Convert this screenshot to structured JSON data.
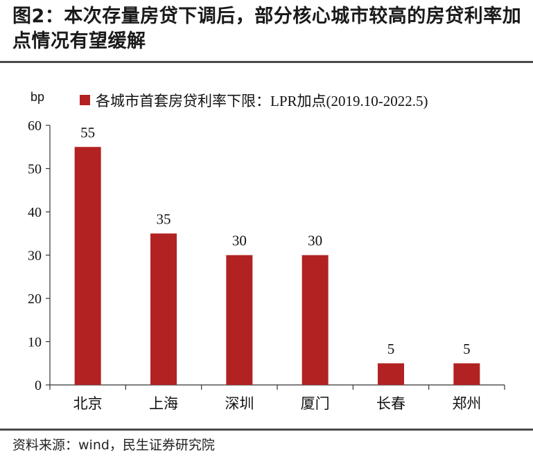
{
  "figure": {
    "title": "图2：本次存量房贷下调后，部分核心城市较高的房贷利率加点情况有望缓解",
    "source": "资料来源：wind，民生证券研究院"
  },
  "colors": {
    "bar": "#B22222",
    "axis": "#333333",
    "rule": "#4a4a4a"
  },
  "chart_data": {
    "type": "bar",
    "categories": [
      "北京",
      "上海",
      "深圳",
      "厦门",
      "长春",
      "郑州"
    ],
    "series": [
      {
        "name": "各城市首套房贷利率下限：LPR加点(2019.10-2022.5)",
        "values": [
          55,
          35,
          30,
          30,
          5,
          5
        ]
      }
    ],
    "ylabel": "bp",
    "ylim": [
      0,
      60
    ],
    "yticks": [
      0,
      10,
      20,
      30,
      40,
      50,
      60
    ],
    "grid": false,
    "legend": "top-center",
    "data_labels": true
  }
}
